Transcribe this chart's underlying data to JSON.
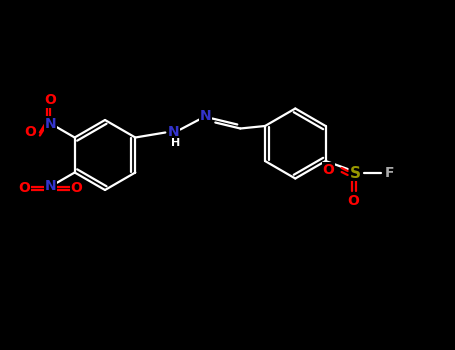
{
  "background_color": "#000000",
  "bond_color": "#ffffff",
  "atom_colors": {
    "N": "#3333cc",
    "O": "#ff0000",
    "S": "#999900",
    "F": "#aaaaaa",
    "C": "#ffffff"
  },
  "figsize": [
    4.55,
    3.5
  ],
  "dpi": 100,
  "lw": 1.6,
  "fs": 10
}
